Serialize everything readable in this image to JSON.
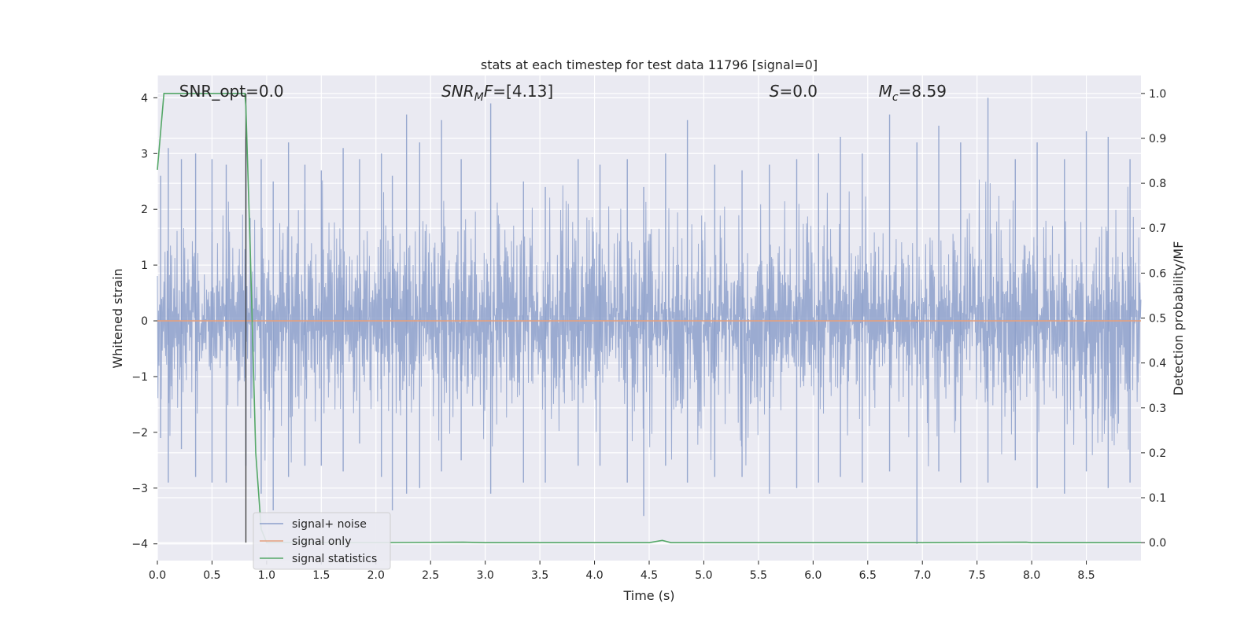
{
  "chart_data": {
    "type": "line",
    "title": "stats at each timestep for test data 11796 [signal=0]",
    "xlabel": "Time (s)",
    "ylabel_left": "Whitened strain",
    "ylabel_right": "Detection probability/MF",
    "xlim": [
      0,
      9.0
    ],
    "ylim_left": [
      -4.3,
      4.4
    ],
    "ylim_right": [
      -0.04,
      1.04
    ],
    "x_ticks": [
      "0.0",
      "0.5",
      "1.0",
      "1.5",
      "2.0",
      "2.5",
      "3.0",
      "3.5",
      "4.0",
      "4.5",
      "5.0",
      "5.5",
      "6.0",
      "6.5",
      "7.0",
      "7.5",
      "8.0",
      "8.5"
    ],
    "y_ticks_left": [
      "4",
      "3",
      "2",
      "1",
      "0",
      "−1",
      "−2",
      "−3",
      "−4"
    ],
    "y_ticks_right": [
      "1.0",
      "0.9",
      "0.8",
      "0.7",
      "0.6",
      "0.5",
      "0.4",
      "0.3",
      "0.2",
      "0.1",
      "0.0"
    ],
    "grid": true,
    "legend_position": "lower-left",
    "annotations": [
      {
        "text": "SNR_opt=0.0",
        "x": 0.2
      },
      {
        "text": "SNR_MF=[4.13]",
        "x": 2.6
      },
      {
        "text": "S=0.0",
        "x": 5.6
      },
      {
        "text": "M_c=8.59",
        "x": 6.6
      }
    ],
    "vertical_marker_x": 0.81,
    "series": [
      {
        "name": "signal+ noise",
        "axis": "left",
        "color": "#8da0cb",
        "note": "whitened noise strain, dense band mostly within ±1.6 with peaks up to about ±4",
        "peaks": [
          [
            0.03,
            2.6,
            -2.1
          ],
          [
            0.1,
            3.1,
            -2.9
          ],
          [
            0.22,
            2.9,
            -2.3
          ],
          [
            0.35,
            3.0,
            -2.8
          ],
          [
            0.5,
            2.9,
            -2.9
          ],
          [
            0.63,
            2.8,
            -2.9
          ],
          [
            0.81,
            3.3,
            -2.6
          ],
          [
            0.95,
            2.9,
            -3.1
          ],
          [
            1.06,
            2.5,
            -3.4
          ],
          [
            1.2,
            3.2,
            -2.8
          ],
          [
            1.35,
            2.8,
            -2.6
          ],
          [
            1.5,
            2.7,
            -2.6
          ],
          [
            1.7,
            3.1,
            -2.7
          ],
          [
            1.85,
            2.9,
            -2.2
          ],
          [
            2.05,
            3.0,
            -2.8
          ],
          [
            2.15,
            2.6,
            -3.4
          ],
          [
            2.28,
            3.7,
            -3.1
          ],
          [
            2.4,
            3.2,
            -3.0
          ],
          [
            2.6,
            3.6,
            -2.7
          ],
          [
            2.78,
            2.9,
            -2.5
          ],
          [
            3.05,
            3.9,
            -3.1
          ],
          [
            3.35,
            2.5,
            -2.9
          ],
          [
            3.55,
            2.4,
            -2.9
          ],
          [
            3.85,
            2.9,
            -2.6
          ],
          [
            4.05,
            2.8,
            -2.6
          ],
          [
            4.3,
            2.9,
            -2.9
          ],
          [
            4.45,
            2.4,
            -3.5
          ],
          [
            4.65,
            3.0,
            -2.6
          ],
          [
            4.85,
            3.6,
            -2.9
          ],
          [
            5.1,
            2.8,
            -2.8
          ],
          [
            5.35,
            2.7,
            -2.8
          ],
          [
            5.6,
            2.8,
            -3.1
          ],
          [
            5.85,
            2.9,
            -3.0
          ],
          [
            6.05,
            3.0,
            -2.9
          ],
          [
            6.25,
            3.3,
            -2.8
          ],
          [
            6.45,
            3.0,
            -2.9
          ],
          [
            6.7,
            3.7,
            -2.7
          ],
          [
            6.95,
            3.2,
            -4.0
          ],
          [
            7.15,
            3.5,
            -2.7
          ],
          [
            7.35,
            3.2,
            -2.9
          ],
          [
            7.6,
            4.0,
            -2.9
          ],
          [
            7.85,
            2.9,
            -2.5
          ],
          [
            8.05,
            3.2,
            -3.0
          ],
          [
            8.3,
            2.9,
            -3.1
          ],
          [
            8.5,
            3.4,
            -2.7
          ],
          [
            8.7,
            3.3,
            -3.0
          ],
          [
            8.9,
            2.9,
            -2.9
          ]
        ]
      },
      {
        "name": "signal only",
        "axis": "left",
        "color": "#e5a07e",
        "x": [
          0,
          9.0
        ],
        "y": [
          0,
          0
        ]
      },
      {
        "name": "signal statistics",
        "axis": "right",
        "color": "#55a868",
        "x": [
          0.0,
          0.06,
          0.1,
          0.2,
          0.5,
          0.8,
          0.81,
          0.85,
          0.9,
          0.95,
          1.0,
          1.1,
          1.2,
          2.0,
          2.8,
          3.0,
          4.0,
          4.5,
          4.62,
          4.7,
          5.0,
          6.0,
          7.0,
          7.95,
          8.0,
          9.0
        ],
        "y": [
          0.83,
          1.0,
          1.0,
          1.0,
          1.0,
          1.0,
          0.97,
          0.65,
          0.2,
          0.03,
          0.0,
          0.0,
          0.0,
          0.0,
          0.001,
          0.0,
          0.0,
          0.0,
          0.005,
          0.0,
          0.0,
          0.0,
          0.0,
          0.001,
          0.0,
          0.0
        ]
      }
    ]
  },
  "colors": {
    "plot_background": "#eaeaf2",
    "grid": "#ffffff",
    "marker": "#3a3a3a"
  }
}
